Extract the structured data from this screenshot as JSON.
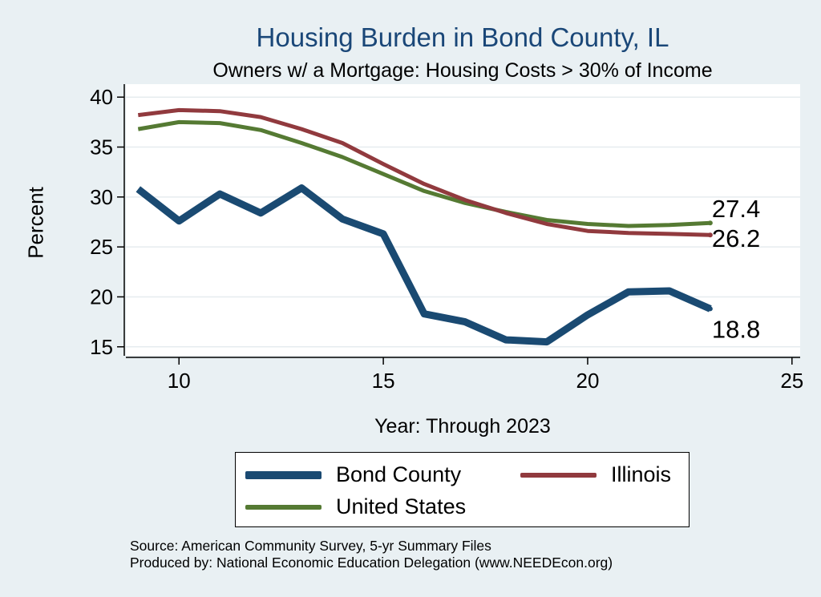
{
  "chart_data": {
    "type": "line",
    "title": "Housing Burden in Bond County, IL",
    "subtitle": "Owners w/ a Mortgage: Housing Costs > 30% of Income",
    "xlabel": "Year: Through 2023",
    "ylabel": "Percent",
    "xlim": [
      8.7,
      25.2
    ],
    "ylim": [
      14.1,
      41.3
    ],
    "xticks": [
      10,
      15,
      20,
      25
    ],
    "yticks": [
      15,
      20,
      25,
      30,
      35,
      40
    ],
    "grid": true,
    "legend_position": "bottom",
    "x": [
      9,
      10,
      11,
      12,
      13,
      14,
      15,
      16,
      17,
      18,
      19,
      20,
      21,
      22,
      23
    ],
    "series": [
      {
        "name": "Bond County",
        "color": "#1a4a72",
        "values": [
          30.8,
          27.6,
          30.3,
          28.4,
          30.9,
          27.8,
          26.3,
          18.3,
          17.5,
          15.7,
          15.5,
          18.2,
          20.5,
          20.6,
          18.8
        ],
        "end_label": "18.8"
      },
      {
        "name": "Illinois",
        "color": "#913a3e",
        "values": [
          38.2,
          38.7,
          38.6,
          38.0,
          36.8,
          35.4,
          33.3,
          31.3,
          29.7,
          28.4,
          27.3,
          26.6,
          26.4,
          26.3,
          26.2
        ],
        "end_label": "26.2"
      },
      {
        "name": "United States",
        "color": "#557a33",
        "values": [
          36.8,
          37.5,
          37.4,
          36.7,
          35.4,
          34.0,
          32.3,
          30.6,
          29.4,
          28.5,
          27.7,
          27.3,
          27.1,
          27.2,
          27.4
        ],
        "end_label": "27.4"
      }
    ]
  },
  "legend": [
    {
      "label": "Bond County",
      "color": "#1a4a72"
    },
    {
      "label": "Illinois",
      "color": "#913a3e"
    },
    {
      "label": "United States",
      "color": "#557a33"
    }
  ],
  "source": {
    "line1": "Source: American Community Survey, 5-yr Summary Files",
    "line2": "Produced by: National Economic Education Delegation (www.NEEDEcon.org)"
  }
}
